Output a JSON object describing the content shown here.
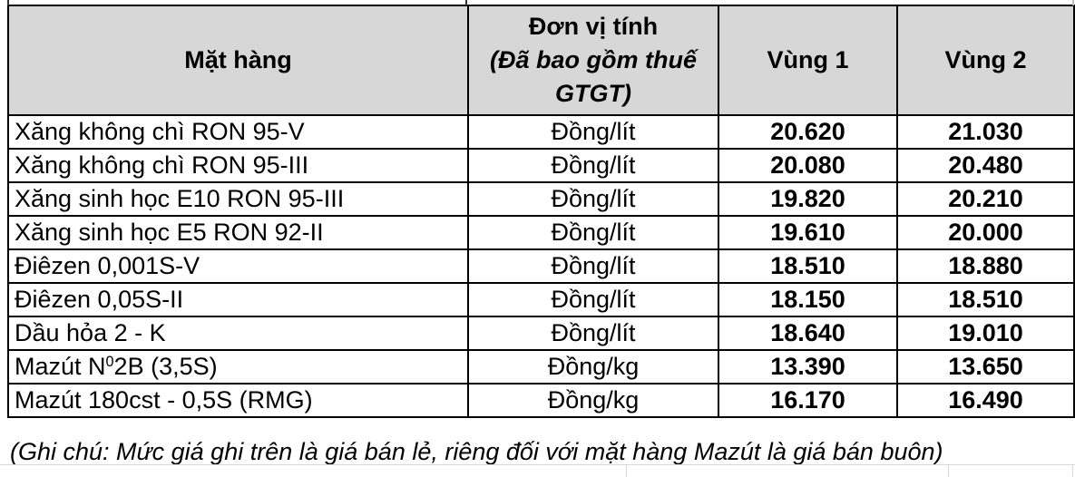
{
  "table": {
    "headers": {
      "product": "Mặt hàng",
      "unit_title": "Đơn vị tính",
      "unit_subtitle": "(Đã bao gồm thuế GTGT)",
      "region1": "Vùng 1",
      "region2": "Vùng 2"
    },
    "rows": [
      {
        "product": "Xăng không chì RON 95-V",
        "unit": "Đồng/lít",
        "vung1": "20.620",
        "vung2": "21.030"
      },
      {
        "product": "Xăng không chì RON 95-III",
        "unit": "Đồng/lít",
        "vung1": "20.080",
        "vung2": "20.480"
      },
      {
        "product": "Xăng sinh học E10 RON 95-III",
        "unit": "Đồng/lít",
        "vung1": "19.820",
        "vung2": "20.210"
      },
      {
        "product": "Xăng sinh học E5 RON 92-II",
        "unit": "Đồng/lít",
        "vung1": "19.610",
        "vung2": "20.000"
      },
      {
        "product": "Điêzen 0,001S-V",
        "unit": "Đồng/lít",
        "vung1": "18.510",
        "vung2": "18.880"
      },
      {
        "product": "Điêzen 0,05S-II",
        "unit": "Đồng/lít",
        "vung1": "18.150",
        "vung2": "18.510"
      },
      {
        "product": "Dầu hỏa 2 - K",
        "unit": "Đồng/lít",
        "vung1": "18.640",
        "vung2": "19.010"
      },
      {
        "product_parts": [
          {
            "t": "Mazút N"
          },
          {
            "t": "0",
            "sup": true
          },
          {
            "t": "2B (3,5S)"
          }
        ],
        "unit": "Đồng/kg",
        "vung1": "13.390",
        "vung2": "13.650"
      },
      {
        "product": "Mazút 180cst - 0,5S (RMG)",
        "unit": "Đồng/kg",
        "vung1": "16.170",
        "vung2": "16.490"
      }
    ],
    "note": "(Ghi chú: Mức giá ghi trên là giá bán lẻ, riêng đối với mặt hàng Mazút là giá bán buôn)"
  },
  "colors": {
    "header_bg": "#d7d7d7",
    "border": "#000000",
    "gridline": "#d9d9d9"
  }
}
